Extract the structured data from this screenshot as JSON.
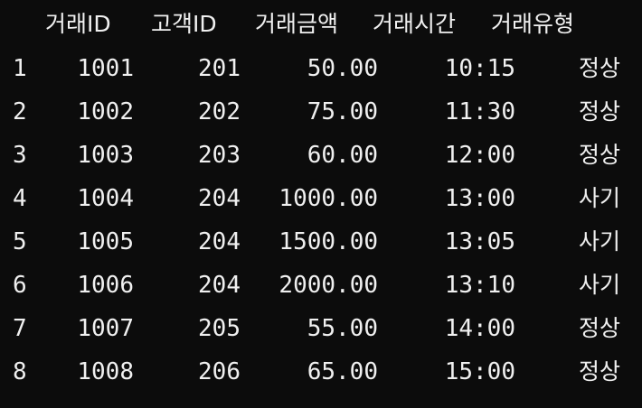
{
  "table": {
    "columns": [
      "거래ID",
      "고객ID",
      "거래금액",
      "거래시간",
      "거래유형"
    ],
    "rows": [
      {
        "index": "1",
        "txid": "1001",
        "cust": "201",
        "amount": "50.00",
        "time": "10:15",
        "type": "정상"
      },
      {
        "index": "2",
        "txid": "1002",
        "cust": "202",
        "amount": "75.00",
        "time": "11:30",
        "type": "정상"
      },
      {
        "index": "3",
        "txid": "1003",
        "cust": "203",
        "amount": "60.00",
        "time": "12:00",
        "type": "정상"
      },
      {
        "index": "4",
        "txid": "1004",
        "cust": "204",
        "amount": "1000.00",
        "time": "13:00",
        "type": "사기"
      },
      {
        "index": "5",
        "txid": "1005",
        "cust": "204",
        "amount": "1500.00",
        "time": "13:05",
        "type": "사기"
      },
      {
        "index": "6",
        "txid": "1006",
        "cust": "204",
        "amount": "2000.00",
        "time": "13:10",
        "type": "사기"
      },
      {
        "index": "7",
        "txid": "1007",
        "cust": "205",
        "amount": "55.00",
        "time": "14:00",
        "type": "정상"
      },
      {
        "index": "8",
        "txid": "1008",
        "cust": "206",
        "amount": "65.00",
        "time": "15:00",
        "type": "정상"
      }
    ]
  },
  "colors": {
    "background": "#0c0c0c",
    "text": "#f0f0f0"
  }
}
